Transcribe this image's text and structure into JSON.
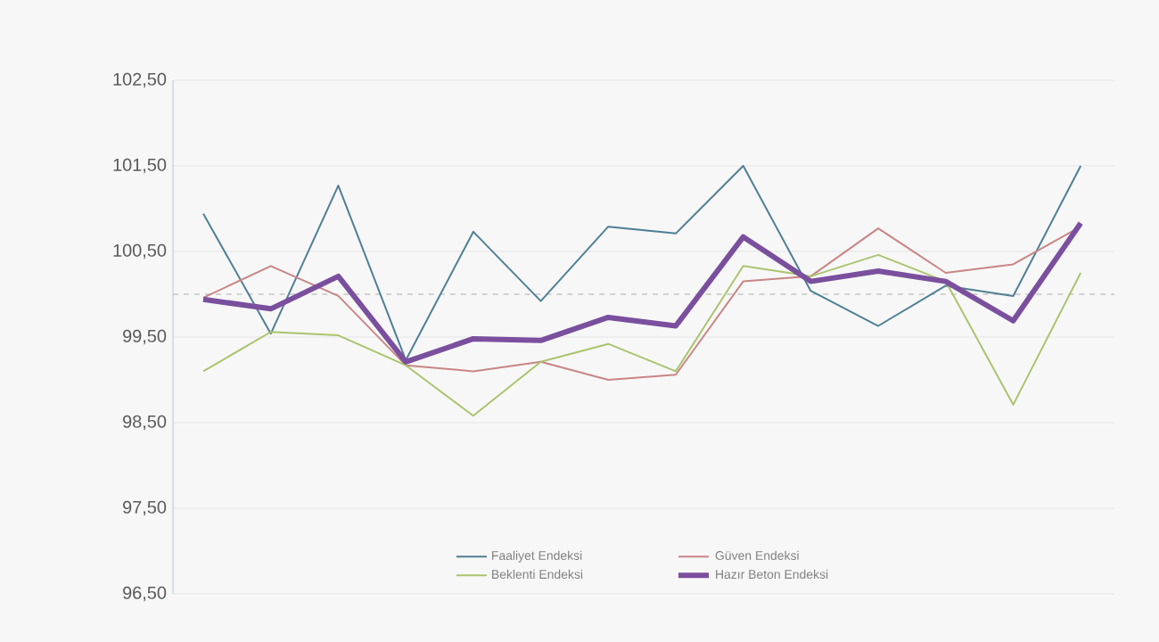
{
  "chart_data": {
    "type": "line",
    "categories": [
      null,
      null,
      null,
      null,
      null,
      null,
      null,
      null,
      null,
      null,
      null,
      null,
      null,
      null
    ],
    "series": [
      {
        "name": "Faaliyet Endeksi",
        "color": "#4f7f96",
        "values": [
          100.94,
          99.54,
          101.27,
          99.23,
          100.73,
          99.92,
          100.79,
          100.71,
          101.5,
          100.04,
          99.63,
          100.1,
          99.98,
          101.5
        ]
      },
      {
        "name": "Güven Endeksi",
        "color": "#c98585",
        "values": [
          99.96,
          100.33,
          99.98,
          99.17,
          99.1,
          99.21,
          99.0,
          99.06,
          100.15,
          100.21,
          100.77,
          100.25,
          100.35,
          100.79
        ]
      },
      {
        "name": "Beklenti Endeksi",
        "color": "#aac46e",
        "values": [
          99.1,
          99.56,
          99.52,
          99.17,
          98.58,
          99.21,
          99.42,
          99.1,
          100.33,
          100.21,
          100.46,
          100.15,
          98.71,
          100.25
        ]
      },
      {
        "name": "Hazır Beton Endeksi",
        "color": "#7a4f9e",
        "values": [
          99.94,
          99.83,
          100.21,
          99.21,
          99.48,
          99.46,
          99.73,
          99.63,
          100.67,
          100.15,
          100.27,
          100.15,
          99.69,
          100.83
        ]
      }
    ],
    "ylim": [
      96.5,
      102.5
    ],
    "yticks": [
      {
        "value": 96.5,
        "label": "96,50"
      },
      {
        "value": 97.5,
        "label": "97,50"
      },
      {
        "value": 98.5,
        "label": "98,50"
      },
      {
        "value": 99.5,
        "label": "99,50"
      },
      {
        "value": 100.5,
        "label": "100,50"
      },
      {
        "value": 101.5,
        "label": "101,50"
      },
      {
        "value": 102.5,
        "label": "102,50"
      }
    ],
    "ref_lines": [
      {
        "axis": "y",
        "value": 100,
        "color": "#999999",
        "line_style": "dashed"
      }
    ],
    "grid": "y",
    "legend": "bottom",
    "marker": "none",
    "line_style": "solid"
  }
}
